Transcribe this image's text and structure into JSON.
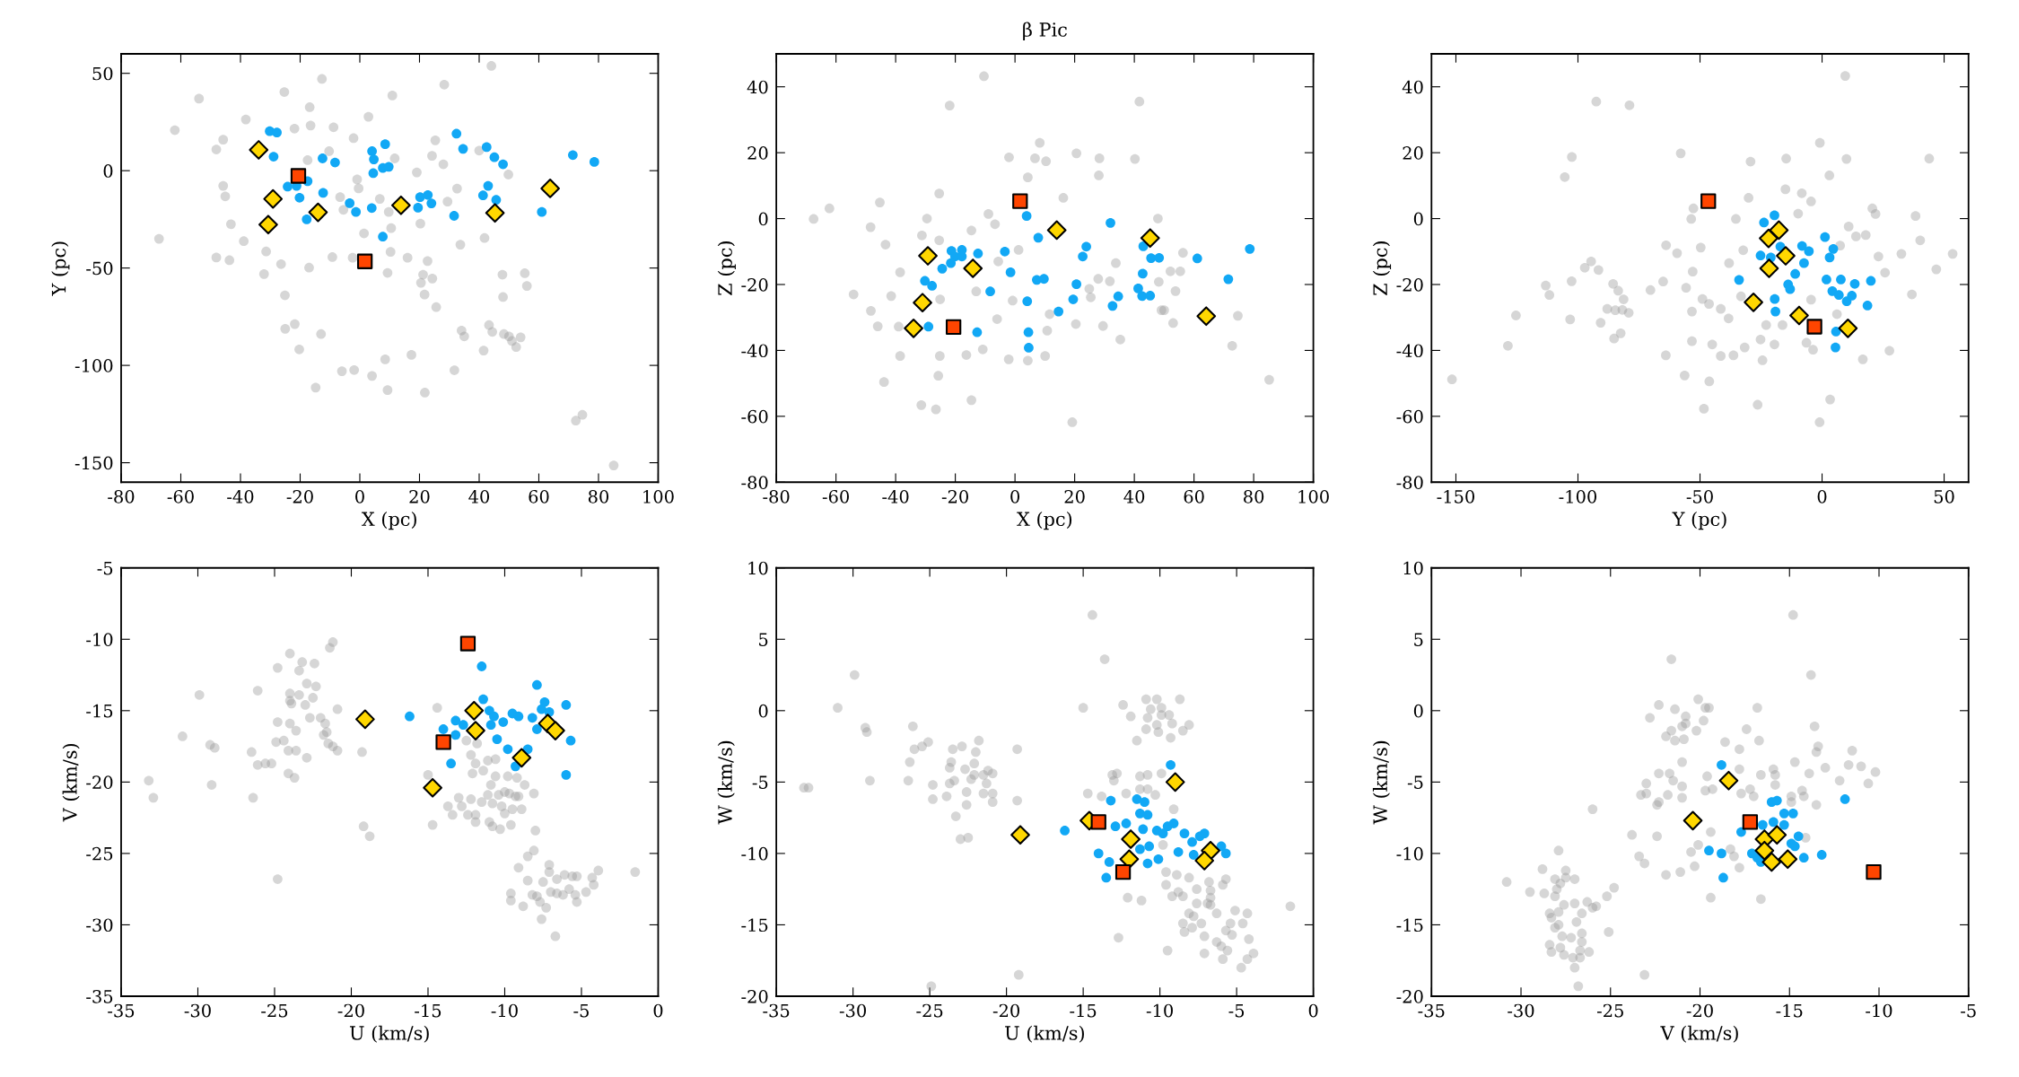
{
  "chart_data": [
    {
      "type": "scatter",
      "xlabel": "X (pc)",
      "ylabel": "Y (pc)",
      "xlim": [
        -80,
        100
      ],
      "ylim": [
        -160,
        60
      ],
      "xticks": [
        -80,
        -60,
        -40,
        -20,
        0,
        20,
        40,
        60,
        80,
        100
      ],
      "yticks": [
        -150,
        -100,
        -50,
        0,
        50
      ],
      "series": [
        {
          "color": "#999999",
          "marker": "circle",
          "x": [
            -53.9,
            -62,
            -67.3,
            -12.7,
            -25.3,
            -16.8,
            10.9,
            28.3,
            44.1,
            -38.2,
            -45.8,
            -48.1,
            -16.5,
            -21.9,
            -8.8,
            2.9,
            -2.1,
            -10.3,
            -17.5,
            11.7,
            25.3,
            24.2,
            28,
            19.1,
            -0.9,
            -0.4,
            6.7,
            -6.6,
            -5.5,
            9.7,
            1.4,
            10.5,
            20.3,
            29.4,
            32.6,
            49.8,
            40,
            41.8,
            33.7,
            -45.8,
            -45.1,
            -43.2,
            -38.9,
            -48.1,
            -43.7,
            -31.4,
            -26.4,
            -32.1,
            -25.1,
            -17,
            -9.2,
            -2.4,
            10.3,
            16,
            22.7,
            21.2,
            20.5,
            24.3,
            21.7,
            25.6,
            9.3,
            47.8,
            55.3,
            56,
            48,
            -25,
            -21.8,
            -13,
            -20.3,
            -6,
            -1.9,
            4.1,
            -14.8,
            8.5,
            9.3,
            17.3,
            21.8,
            31.7,
            35,
            34.1,
            41.5,
            43.3,
            44.4,
            48.3,
            50,
            51,
            52.4,
            53.9,
            72.4,
            74.6,
            85.1
          ],
          "values": [
            37,
            20.8,
            -35,
            47.1,
            40.4,
            32.6,
            38.6,
            44.2,
            53.8,
            26.3,
            15.9,
            10.9,
            23.2,
            21.6,
            22.3,
            27.7,
            16.7,
            10,
            5.4,
            6.3,
            15.6,
            7.6,
            3.3,
            -0.9,
            -4.5,
            -9.1,
            -14.5,
            -13.6,
            -20.1,
            -21.2,
            -32.2,
            -29.5,
            -27.2,
            -15.9,
            -9.2,
            -2,
            10.3,
            -34.6,
            -38,
            -7.8,
            -13.2,
            -27.5,
            -36.2,
            -44.6,
            -46,
            -41.5,
            -48,
            -53.1,
            -64,
            -49.8,
            -44.4,
            -44.7,
            -41.7,
            -44.7,
            -46.4,
            -53.4,
            -57.6,
            -55.4,
            -63.6,
            -70.1,
            -52.5,
            -53.4,
            -52.7,
            -59.2,
            -64.9,
            -81.2,
            -78.8,
            -83.9,
            -91.8,
            -103,
            -102.4,
            -105.4,
            -111.4,
            -96.9,
            -112.7,
            -94.6,
            -114,
            -102.5,
            -85.1,
            -82.1,
            -92.4,
            -79.3,
            -82.8,
            -83.9,
            -85.1,
            -87.5,
            -90.6,
            -85.6,
            -128.4,
            -125.4,
            -151.4
          ]
        },
        {
          "color": "#12a8f5",
          "marker": "circle",
          "x": [
            -30.2,
            -27.8,
            -28.9,
            -12.5,
            -8.3,
            -24.2,
            -21.2,
            -17.5,
            -20.2,
            -12.3,
            -17.8,
            -3.4,
            -1.3,
            4,
            4.1,
            4.7,
            8.5,
            4.5,
            7.7,
            9.7,
            7.7,
            20.2,
            22.8,
            24,
            19.5,
            31.6,
            32.4,
            34.6,
            42.5,
            45.1,
            48,
            43,
            41.3,
            45.7,
            61,
            71.4,
            78.6
          ],
          "values": [
            20.3,
            19.6,
            7.2,
            6.3,
            4.2,
            -8.2,
            -7.8,
            -5.4,
            -13.9,
            -11.4,
            -25,
            -16.7,
            -21.2,
            -19.2,
            10,
            5.8,
            13.6,
            -1.3,
            1.4,
            2,
            -33.9,
            -13.6,
            -12.5,
            -16.8,
            -19,
            -23.2,
            19,
            11.2,
            12.1,
            6.9,
            3.3,
            -7.8,
            -12.7,
            -15,
            -21.2,
            8,
            4.5
          ]
        },
        {
          "color": "#ffd700",
          "marker": "diamond",
          "x": [
            -33.9,
            -29.1,
            -30.7,
            -14,
            13.8,
            45.3,
            63.8
          ],
          "values": [
            10.7,
            -14.5,
            -27.7,
            -21.4,
            -17.8,
            -21.7,
            -9.1
          ]
        },
        {
          "color": "#ff4500",
          "marker": "square",
          "x": [
            -20.6,
            1.7
          ],
          "values": [
            -2.7,
            -46.6
          ]
        }
      ]
    },
    {
      "type": "scatter",
      "title": "β Pic",
      "xlabel": "X (pc)",
      "ylabel": "Z (pc)",
      "xlim": [
        -80,
        100
      ],
      "ylim": [
        -80,
        50
      ],
      "xticks": [
        -80,
        -60,
        -40,
        -20,
        0,
        20,
        40,
        60,
        80,
        100
      ],
      "yticks": [
        -80,
        -60,
        -40,
        -20,
        0,
        20,
        40
      ],
      "series": [
        {
          "color": "#999999",
          "marker": "circle",
          "x": [
            -10.4,
            -21.9,
            41.7,
            8.3,
            -2,
            6.7,
            10.4,
            20.6,
            28.3,
            40.2,
            28.1,
            4.3,
            -25.4,
            16.2,
            -45.3,
            -62.2,
            -67.5,
            -29.5,
            -48.4,
            -43.4,
            -31.2,
            -25.4,
            -14.6,
            -8.9,
            -6.7,
            1.2,
            -5.6,
            47.9,
            56.3,
            33.8,
            52.1,
            55.4,
            27.9,
            31.8,
            48.2,
            53.8,
            49.1,
            50,
            53,
            74.7,
            72.8,
            85.2,
            35.3,
            29.5,
            20.4,
            10.8,
            10.1,
            4.3,
            -2.1,
            -10.8,
            -16.3,
            -25.2,
            -38.5,
            -39,
            -46,
            -48.3,
            -54.1,
            -41.5,
            -38.5,
            -25.1,
            -13,
            -6,
            -0.8,
            11.6,
            24.9,
            25.4,
            -25.7,
            -43.9,
            -31.4,
            -26.5,
            -14.6,
            19.2
          ],
          "values": [
            43.2,
            34.3,
            35.5,
            23,
            18.6,
            18.3,
            17.4,
            19.8,
            18.3,
            18.1,
            13.1,
            12.5,
            7.6,
            6.3,
            4.9,
            3.1,
            -0.1,
            0,
            -2.6,
            -7.9,
            -5.1,
            -6.6,
            -3.6,
            1.4,
            -1.7,
            -9.5,
            -13,
            0,
            -10.4,
            -13.5,
            -16,
            -16,
            -18.3,
            -19,
            -19.2,
            -22,
            -27.8,
            -27.8,
            -31.7,
            -29.5,
            -38.6,
            -48.9,
            -36.7,
            -32.6,
            -32,
            -34,
            -41.7,
            -43.1,
            -42.7,
            -39.7,
            -41.4,
            -41.7,
            -41.7,
            -32.8,
            -32.7,
            -28,
            -23,
            -23.5,
            -16.3,
            -24.5,
            -22.1,
            -30.5,
            -24.9,
            -29,
            -21.3,
            -23.9,
            -47.7,
            -49.6,
            -56.6,
            -57.9,
            -55.1,
            -61.8
          ]
        },
        {
          "color": "#12a8f5",
          "marker": "circle",
          "x": [
            -21.3,
            -17.8,
            -12.4,
            -20.1,
            -17.8,
            -21.5,
            -24.4,
            -30.2,
            -27.8,
            -29,
            -12.7,
            -8.3,
            -3.4,
            -1.5,
            3.9,
            7.8,
            7.3,
            9.7,
            4.1,
            4.5,
            4.6,
            14.6,
            19.5,
            20.6,
            22.7,
            23.9,
            32,
            34.6,
            32.7,
            41.3,
            42.6,
            45.3,
            42.8,
            43,
            45.6,
            48.3,
            61.1,
            71.5,
            78.7
          ],
          "values": [
            -9.8,
            -9.5,
            -10.6,
            -11.5,
            -11.5,
            -13.5,
            -15.2,
            -18.9,
            -20.4,
            -32.8,
            -34.5,
            -22.1,
            -10,
            -16.3,
            0.8,
            -5.8,
            -18.6,
            -18.3,
            -25.1,
            -34.5,
            -39.2,
            -28.2,
            -24.5,
            -19.9,
            -11.5,
            -8.5,
            -1.3,
            -23.6,
            -26.5,
            -21.2,
            -23.5,
            -23.4,
            -16.7,
            -8.4,
            -12,
            -11.9,
            -12.1,
            -18.4,
            -9.2
          ]
        },
        {
          "color": "#ffd700",
          "marker": "diamond",
          "x": [
            -29.2,
            -14.1,
            14,
            45.3,
            -31,
            -34,
            64.1
          ],
          "values": [
            -11.3,
            -15.1,
            -3.5,
            -5.9,
            -25.5,
            -33.3,
            -29.6
          ]
        },
        {
          "color": "#ff4500",
          "marker": "square",
          "x": [
            1.7,
            -20.6
          ],
          "values": [
            5.3,
            -32.9
          ]
        }
      ]
    },
    {
      "type": "scatter",
      "xlabel": "Y (pc)",
      "ylabel": "Z (pc)",
      "xlim": [
        -160,
        60
      ],
      "ylim": [
        -80,
        50
      ],
      "xticks": [
        -150,
        -100,
        -50,
        0,
        50
      ],
      "yticks": [
        -80,
        -60,
        -40,
        -20,
        0,
        20,
        40
      ],
      "series": [
        {
          "color": "#999999",
          "marker": "circle",
          "x": [
            9.5,
            -92.5,
            -78.9,
            -57.9,
            -102.5,
            -105.4,
            -29.3,
            -14.7,
            -0.9,
            10,
            43.9,
            3,
            -15,
            -8.3,
            -4.5,
            -30.1,
            -52.7,
            -53.6,
            -35.3,
            -9.8,
            20.6,
            21.9,
            38.3,
            40.2,
            53.5,
            46.8,
            32.5,
            25.8,
            23.1,
            13.9,
            17.9,
            7.4,
            10.9,
            36.8,
            27.6,
            16.7,
            3.3,
            -1,
            -26.4,
            -48.4,
            -56.3,
            -46.2,
            -64,
            -53.3,
            -45,
            -36.3,
            -41.5,
            -24.4,
            -31.7,
            -19.5,
            -25.2,
            -22.9,
            -16.2,
            -6.4,
            -3.7,
            6.1,
            -4.5,
            -32.3,
            -38.1,
            -49.7,
            -59.4,
            -63.9,
            -53,
            -55.7,
            -70.3,
            -65.1,
            -49,
            -46.3,
            -41.5,
            -38.3,
            -33.2,
            -53.3,
            -85.6,
            -83.5,
            -81.3,
            -88,
            -84.7,
            -81.8,
            -79.2,
            -90.7,
            -85.2,
            -82.5,
            -97.2,
            -94.6,
            -91.6,
            -102.6,
            -113.2,
            -111.7,
            -103.2,
            -125.4,
            -128.7,
            -151.6
          ],
          "values": [
            43.3,
            35.5,
            34.4,
            19.8,
            18.7,
            12.6,
            17.3,
            18.2,
            23,
            18.1,
            18.2,
            13.1,
            8.9,
            7.7,
            5.2,
            6.3,
            3.1,
            -0.1,
            -0.1,
            1.5,
            3.1,
            1.4,
            0.8,
            -6.6,
            -10.7,
            -15.4,
            -10.7,
            -16.4,
            -11.5,
            -5.4,
            -5,
            -8.2,
            -2.4,
            -23,
            -40.1,
            -42.7,
            -54.9,
            -61.8,
            -56.5,
            -57.7,
            -47.6,
            -49.4,
            -41.5,
            -37.2,
            -38.2,
            -41.5,
            -41.7,
            -43,
            -39.1,
            -38.2,
            -36.7,
            -32.3,
            -32.3,
            -37.7,
            -39.8,
            -29,
            -24.6,
            -9.6,
            -13.5,
            -8.8,
            -10.5,
            -8.1,
            -16.1,
            -21,
            -21.7,
            -19.1,
            -24.4,
            -25.9,
            -27.4,
            -30.3,
            -23.6,
            -28.2,
            -19.8,
            -21.9,
            -24.5,
            -27.4,
            -27.8,
            -27.7,
            -28.6,
            -31.6,
            -36.4,
            -34.8,
            -14.9,
            -13,
            -15.6,
            -19,
            -20.3,
            -23.2,
            -30.6,
            -29.4,
            -38.6,
            -48.8
          ]
        },
        {
          "color": "#12a8f5",
          "marker": "circle",
          "x": [
            -19.5,
            -23.8,
            -17.1,
            -25.2,
            -21,
            -8.2,
            -5.4,
            -7.4,
            -11,
            -13.9,
            -13.1,
            -34,
            -19.4,
            -19.1,
            1.2,
            4.6,
            3.1,
            1.8,
            7.7,
            13.4,
            20,
            4.2,
            6.9,
            10.1,
            12.2,
            18.6,
            5.7,
            5.5
          ],
          "values": [
            1,
            -1.2,
            -8.5,
            -11.2,
            -11.8,
            -8.3,
            -9.9,
            -13.5,
            -16.8,
            -20,
            -21.4,
            -18.6,
            -24.4,
            -28.2,
            -5.6,
            -9.2,
            -11.8,
            -18.5,
            -18.5,
            -19.8,
            -18.9,
            -22,
            -23.2,
            -25.1,
            -23.4,
            -26.4,
            -34.3,
            -39.1
          ]
        },
        {
          "color": "#ffd700",
          "marker": "diamond",
          "x": [
            -21.9,
            -17.7,
            -14.9,
            -21.7,
            -28.1,
            -9.4,
            10.6
          ],
          "values": [
            -6,
            -3.5,
            -11.3,
            -15.1,
            -25.4,
            -29.4,
            -33.3
          ]
        },
        {
          "color": "#ff4500",
          "marker": "square",
          "x": [
            -46.6,
            -3.1
          ],
          "values": [
            5.3,
            -32.8
          ]
        }
      ]
    },
    {
      "type": "scatter",
      "xlabel": "U (km/s)",
      "ylabel": "V (km/s)",
      "xlim": [
        -35,
        0
      ],
      "ylim": [
        -35,
        -5
      ],
      "xticks": [
        -35,
        -30,
        -25,
        -20,
        -15,
        -10,
        -5,
        0
      ],
      "yticks": [
        -35,
        -30,
        -25,
        -20,
        -15,
        -10,
        -5
      ],
      "series": [
        {
          "color": "#999999",
          "marker": "circle",
          "x": [
            -21.2,
            -21.4,
            -24,
            -23.2,
            -22.4,
            -24.8,
            -23.4,
            -22.9,
            -22.3,
            -24,
            -23.4,
            -24,
            -23.9,
            -22.5,
            -23,
            -29.9,
            -26.1,
            -20.9,
            -22.7,
            -22,
            -24.8,
            -24,
            -23.6,
            -21.7,
            -21.6,
            -21.8,
            -21.5,
            -21.2,
            -20.9,
            -31,
            -29.2,
            -28.9,
            -24.9,
            -24.4,
            -26.5,
            -26.1,
            -25.6,
            -25.2,
            -24.1,
            -23.6,
            -22.9,
            -24.1,
            -23.7,
            -33.2,
            -32.9,
            -29.1,
            -26.4,
            -19.3,
            -14.4,
            -19.2,
            -18.8,
            -24.8,
            -14.7,
            -15,
            -12.5,
            -11.8,
            -12.2,
            -11.9,
            -11.1,
            -10.6,
            -12.1,
            -11.4,
            -10.9,
            -10.6,
            -9.8,
            -9.2,
            -8.7,
            -8.1,
            -13,
            -12.2,
            -11.5,
            -11.1,
            -10.4,
            -10,
            -9.7,
            -9.3,
            -9.1,
            -10.8,
            -10.2,
            -10,
            -9.5,
            -8.9,
            -13.7,
            -12.8,
            -13.4,
            -12.4,
            -11.9,
            -11.9,
            -11,
            -10.8,
            -10.3,
            -9.6,
            -8,
            -8.1,
            -8.5,
            -9.1,
            -7.1,
            -7.1,
            -8.5,
            -7.5,
            -6.6,
            -6.1,
            -5.6,
            -5.3,
            -4.3,
            -3.9,
            -1.5,
            -9.6,
            -9.6,
            -8.8,
            -8.2,
            -7.9,
            -7.7,
            -7.3,
            -7,
            -6.6,
            -6.2,
            -5.8,
            -5.4,
            -5.3,
            -4.7,
            -4.2,
            -7.6,
            -6.7
          ],
          "values": [
            -10.2,
            -10.6,
            -11,
            -11.6,
            -11.7,
            -12,
            -12.2,
            -13.1,
            -13.3,
            -13.8,
            -13.9,
            -14.3,
            -14.5,
            -14.1,
            -14.6,
            -13.9,
            -13.6,
            -14.9,
            -15.5,
            -15.5,
            -15.8,
            -15.9,
            -16.4,
            -15.9,
            -16.5,
            -16.7,
            -17.3,
            -17.5,
            -17.8,
            -16.8,
            -17.4,
            -17.6,
            -17.2,
            -17.1,
            -17.9,
            -18.8,
            -18.7,
            -18.7,
            -17.8,
            -17.8,
            -18.3,
            -19.4,
            -19.7,
            -19.9,
            -21.1,
            -20.2,
            -21.1,
            -17.9,
            -14.8,
            -23.1,
            -23.8,
            -26.8,
            -23,
            -19.5,
            -17.1,
            -17.3,
            -18.1,
            -18.7,
            -18.5,
            -18.4,
            -19.4,
            -19.2,
            -20.2,
            -19.6,
            -19.6,
            -19.7,
            -20.2,
            -20.8,
            -21.1,
            -21.2,
            -21.4,
            -20.9,
            -20.9,
            -20.7,
            -20.8,
            -21,
            -21,
            -21.5,
            -21.7,
            -22.2,
            -21.9,
            -21.9,
            -21.7,
            -21.7,
            -22.3,
            -22.3,
            -22.3,
            -22.8,
            -22.8,
            -23.1,
            -23.3,
            -23,
            -23.4,
            -24.8,
            -25.2,
            -26,
            -25.8,
            -26.3,
            -26.9,
            -27,
            -26.8,
            -26.5,
            -26.6,
            -26.6,
            -26.7,
            -26.2,
            -26.3,
            -27.8,
            -28.3,
            -28.7,
            -27.9,
            -28,
            -28.4,
            -28.8,
            -27.7,
            -27.8,
            -27.9,
            -27.5,
            -27.9,
            -28.4,
            -27.7,
            -27.2,
            -29.6,
            -30.8
          ]
        },
        {
          "color": "#12a8f5",
          "marker": "circle",
          "x": [
            -11.5,
            -7.9,
            -11.4,
            -7.4,
            -6,
            -7.6,
            -7.1,
            -16.2,
            -13.2,
            -12.7,
            -11,
            -10.7,
            -10.1,
            -9.5,
            -9.1,
            -8.2,
            -10.9,
            -7.9,
            -14,
            -13.2,
            -10.5,
            -5.7,
            -9.8,
            -8.5,
            -13.5,
            -9.3,
            -6
          ],
          "values": [
            -11.9,
            -13.2,
            -14.2,
            -14.4,
            -14.6,
            -14.9,
            -15.1,
            -15.4,
            -15.7,
            -16,
            -15,
            -15.4,
            -15.8,
            -15.2,
            -15.4,
            -15.5,
            -16,
            -16.3,
            -16.3,
            -16.7,
            -17,
            -17.1,
            -17.7,
            -17.7,
            -18.7,
            -18.9,
            -19.5
          ]
        },
        {
          "color": "#ffd700",
          "marker": "diamond",
          "x": [
            -19.1,
            -12,
            -11.9,
            -7.2,
            -6.7,
            -8.9,
            -14.7
          ],
          "values": [
            -15.6,
            -15,
            -16.4,
            -15.9,
            -16.4,
            -18.3,
            -20.4
          ]
        },
        {
          "color": "#ff4500",
          "marker": "square",
          "x": [
            -12.4,
            -14
          ],
          "values": [
            -10.3,
            -17.2
          ]
        }
      ]
    },
    {
      "type": "scatter",
      "xlabel": "U (km/s)",
      "ylabel": "W (km/s)",
      "xlim": [
        -35,
        0
      ],
      "ylim": [
        -20,
        10
      ],
      "xticks": [
        -35,
        -30,
        -25,
        -20,
        -15,
        -10,
        -5,
        0
      ],
      "yticks": [
        -20,
        -15,
        -10,
        -5,
        0,
        5,
        10
      ],
      "series": [
        {
          "color": "#999999",
          "marker": "circle",
          "x": [
            -14.4,
            -13.6,
            -29.9,
            -31,
            -15,
            -12.4,
            -10.9,
            -10.2,
            -8.7,
            -9.9,
            -10.6,
            -11.9,
            -9.9,
            -9.4,
            -10.8,
            -10.2,
            -9.2,
            -8.1,
            -10.9,
            -10.1,
            -8.5,
            -9.3,
            -11.5,
            -29.2,
            -29.1,
            -26.1,
            -26,
            -25.5,
            -25.1,
            -21.8,
            -19.3,
            -23.5,
            -22.9,
            -22,
            -26.3,
            -23.6,
            -23.7,
            -22.1,
            -22.7,
            -22.1,
            -21.5,
            -21.2,
            -20.9,
            -28.9,
            -26.4,
            -23.7,
            -23.4,
            -22.3,
            -21.3,
            -20.9,
            -20.9,
            -21.5,
            -22.6,
            -24.8,
            -24.8,
            -23.9,
            -33.2,
            -32.9,
            -22.6,
            -23.3,
            -19.3,
            -23,
            -22.5,
            -14.7,
            -13.1,
            -12.8,
            -13,
            -11.3,
            -10.8,
            -9.9,
            -12.2,
            -11.3,
            -10.8,
            -10.3,
            -13.8,
            -9.1,
            -9.8,
            -9.6,
            -8.9,
            -8.1,
            -6.8,
            -5.7,
            -5.9,
            -9.6,
            -9.2,
            -8.8,
            -8.5,
            -7.6,
            -6.7,
            -6.7,
            -7.6,
            -6.9,
            -6.7,
            -8.1,
            -7.8,
            -6.3,
            -5.1,
            -4.3,
            -8.5,
            -7.9,
            -7.3,
            -5.4,
            -4.6,
            -8.4,
            -5.7,
            -5.3,
            -7.1,
            -4.2,
            -6.3,
            -3.9,
            -7.1,
            -6,
            -5.6,
            -5.9,
            -4.3,
            -4.7,
            -1.5,
            -12.1,
            -11.2,
            -12.7,
            -9.5,
            -19.2,
            -24.9
          ],
          "values": [
            6.7,
            3.6,
            2.5,
            0.2,
            0.2,
            0.4,
            0.8,
            0.8,
            0.8,
            0.2,
            0.1,
            -0.4,
            -0.3,
            -0.3,
            -0.5,
            -1,
            -0.9,
            -1,
            -1.3,
            -1.5,
            -1.4,
            -1.9,
            -2.1,
            -1.2,
            -1.5,
            -1.1,
            -2.7,
            -2.5,
            -2.2,
            -2.1,
            -2.7,
            -2.7,
            -2.5,
            -2.9,
            -3.6,
            -3.6,
            -4,
            -3.7,
            -4.1,
            -4.5,
            -4.5,
            -4.2,
            -4.4,
            -4.9,
            -4.9,
            -5.1,
            -4.9,
            -4.8,
            -5.1,
            -5.8,
            -6.4,
            -5.8,
            -5.7,
            -5.2,
            -6.2,
            -6,
            -5.4,
            -5.4,
            -6.6,
            -7.4,
            -6.3,
            -9,
            -8.9,
            -5.8,
            -4.5,
            -4.4,
            -4.9,
            -4.6,
            -4.5,
            -4.4,
            -5.8,
            -5.5,
            -5.5,
            -5.9,
            -6,
            -6.9,
            -9.4,
            -11.3,
            -11.5,
            -11.7,
            -12,
            -11.8,
            -12.2,
            -12.2,
            -13,
            -12.7,
            -13,
            -12.5,
            -12.6,
            -13.1,
            -13.5,
            -13.5,
            -13.6,
            -14.2,
            -14.4,
            -14.2,
            -14,
            -14.2,
            -14.9,
            -15.2,
            -14.9,
            -14.9,
            -14.9,
            -15.5,
            -15.4,
            -15.7,
            -15.8,
            -16,
            -16.2,
            -17,
            -17,
            -16.5,
            -16.8,
            -17.4,
            -17.4,
            -18,
            -13.7,
            -13.1,
            -13.3,
            -15.9,
            -16.8,
            -18.5,
            -19.3
          ]
        },
        {
          "color": "#12a8f5",
          "marker": "circle",
          "x": [
            -9.3,
            -13.2,
            -11.5,
            -11,
            -11.3,
            -10.8,
            -12.2,
            -12.9,
            -11.1,
            -10.2,
            -9.8,
            -9.5,
            -9.1,
            -8.4,
            -7.1,
            -7.4,
            -7.9,
            -16.2,
            -10.7,
            -11.3,
            -14,
            -8.8,
            -7.8,
            -6,
            -5.7,
            -13.3,
            -10.8,
            -10.1,
            -13.5
          ],
          "values": [
            -3.8,
            -6.3,
            -6.2,
            -6.4,
            -7.2,
            -7.3,
            -7.9,
            -8.1,
            -8.3,
            -8.4,
            -8.6,
            -8.1,
            -7.9,
            -8.6,
            -8.6,
            -8.8,
            -9.2,
            -8.4,
            -9.5,
            -9.7,
            -10,
            -9.9,
            -10.1,
            -9.5,
            -10,
            -10.6,
            -10.7,
            -10.4,
            -11.7
          ]
        },
        {
          "color": "#ffd700",
          "marker": "diamond",
          "x": [
            -14.6,
            -19.1,
            -9,
            -11.9,
            -12,
            -6.7,
            -7.1
          ],
          "values": [
            -7.7,
            -8.7,
            -5,
            -9,
            -10.4,
            -9.8,
            -10.5
          ]
        },
        {
          "color": "#ff4500",
          "marker": "square",
          "x": [
            -14,
            -12.4
          ],
          "values": [
            -7.8,
            -11.3
          ]
        }
      ]
    },
    {
      "type": "scatter",
      "xlabel": "V (km/s)",
      "ylabel": "W (km/s)",
      "xlim": [
        -35,
        -5
      ],
      "ylim": [
        -20,
        10
      ],
      "xticks": [
        -35,
        -30,
        -25,
        -20,
        -15,
        -10,
        -5
      ],
      "yticks": [
        -20,
        -15,
        -10,
        -5,
        0,
        5,
        10
      ],
      "series": [
        {
          "color": "#999999",
          "marker": "circle",
          "x": [
            -14.8,
            -21.6,
            -13.8,
            -22.3,
            -21.4,
            -20.1,
            -19.7,
            -19.5,
            -16.8,
            -20.8,
            -20.8,
            -21,
            -22.8,
            -13.6,
            -19.8,
            -20.2,
            -17.4,
            -21.6,
            -21.9,
            -21.4,
            -20.9,
            -16.7,
            -18.6,
            -17.8,
            -13.4,
            -13.5,
            -11.5,
            -14.7,
            -11.7,
            -11,
            -10.2,
            -13.9,
            -13,
            -12.2,
            -10.6,
            -15.9,
            -15.8,
            -15.8,
            -16.6,
            -17.8,
            -21,
            -22.3,
            -21.7,
            -23,
            -21.5,
            -21,
            -21.8,
            -22.3,
            -21,
            -23.3,
            -22.4,
            -23,
            -19.6,
            -19.3,
            -19.7,
            -17.2,
            -17.7,
            -17,
            -14.9,
            -14.2,
            -13.5,
            -14.3,
            -14.9,
            -26,
            -23.8,
            -22.4,
            -19.4,
            -20.1,
            -20.5,
            -18.3,
            -18.1,
            -17.8,
            -23.4,
            -23.1,
            -21.1,
            -21.9,
            -20.3,
            -14.1,
            -19.4,
            -16.6,
            -24.8,
            -25.2,
            -25.1,
            -26,
            -25.8,
            -27.9,
            -28.8,
            -30.8,
            -29.5,
            -28.7,
            -28.1,
            -27.5,
            -27,
            -27.5,
            -27.8,
            -28,
            -28.1,
            -27.6,
            -27,
            -26.3,
            -28.4,
            -27.9,
            -26.6,
            -28.3,
            -26.9,
            -27.9,
            -28.1,
            -27.2,
            -27.7,
            -26.6,
            -26.6,
            -28.4,
            -27.8,
            -26.7,
            -26.2,
            -28.3,
            -27.6,
            -27.1,
            -26.7,
            -27,
            -23.1,
            -26.8
          ],
          "values": [
            6.7,
            3.6,
            2.5,
            0.4,
            0.1,
            0.8,
            0.2,
            0.2,
            0.2,
            -0.4,
            -0.9,
            -1.1,
            -0.5,
            -1.1,
            -0.7,
            -1.4,
            -1.3,
            -1.4,
            -1.8,
            -2.1,
            -2,
            -2.1,
            -2.2,
            -2.7,
            -2.5,
            -2.9,
            -2.8,
            -3.6,
            -3.8,
            -3.9,
            -4.3,
            -4.4,
            -4,
            -4.9,
            -5.1,
            -4.1,
            -4.5,
            -5.2,
            -4.5,
            -4.1,
            -3.6,
            -4.4,
            -4.4,
            -5.1,
            -4.9,
            -5.3,
            -5.9,
            -6.4,
            -6.1,
            -5.9,
            -6.6,
            -5.8,
            -4.6,
            -5.5,
            -5.6,
            -5.5,
            -5.8,
            -6,
            -6,
            -6,
            -6.6,
            -5.6,
            -6.4,
            -6.9,
            -8.7,
            -8.8,
            -8.5,
            -9.4,
            -9.9,
            -9.7,
            -10.2,
            -11,
            -10.2,
            -10.7,
            -11.3,
            -11.5,
            -10.9,
            -8.9,
            -13.1,
            -13.2,
            -12.4,
            -13,
            -15.5,
            -13.8,
            -13.7,
            -9.8,
            -11.1,
            -12,
            -12.7,
            -12.8,
            -11.8,
            -11.2,
            -11.8,
            -11.7,
            -12.1,
            -12.5,
            -13,
            -13.6,
            -13.5,
            -13.4,
            -14.2,
            -14.1,
            -14.2,
            -14.5,
            -14.8,
            -15,
            -15.2,
            -15.9,
            -15.8,
            -15.6,
            -16.2,
            -16.4,
            -16.6,
            -16.8,
            -16.9,
            -16.9,
            -17.1,
            -17.3,
            -17.3,
            -18,
            -18.5,
            -19.3
          ]
        },
        {
          "color": "#12a8f5",
          "marker": "circle",
          "x": [
            -18.8,
            -16,
            -15.7,
            -15.3,
            -14.8,
            -11.9,
            -16.5,
            -15.9,
            -15.3,
            -17.7,
            -14.5,
            -14.9,
            -14.7,
            -19.5,
            -18.8,
            -17.1,
            -16.8,
            -14.2,
            -13.2,
            -16.6,
            -18.7
          ],
          "values": [
            -3.8,
            -6.4,
            -6.3,
            -7.2,
            -7.2,
            -6.2,
            -8,
            -7.8,
            -8,
            -8.5,
            -8.8,
            -9.3,
            -9.5,
            -9.8,
            -10,
            -10,
            -10.3,
            -10.3,
            -10.1,
            -10.6,
            -11.7
          ]
        },
        {
          "color": "#ffd700",
          "marker": "diamond",
          "x": [
            -18.4,
            -20.4,
            -16.4,
            -15.7,
            -16.4,
            -16,
            -15.1
          ],
          "values": [
            -4.9,
            -7.7,
            -9,
            -8.7,
            -9.8,
            -10.6,
            -10.4
          ]
        },
        {
          "color": "#ff4500",
          "marker": "square",
          "x": [
            -17.2,
            -10.3
          ],
          "values": [
            -7.8,
            -11.3
          ]
        }
      ]
    }
  ]
}
